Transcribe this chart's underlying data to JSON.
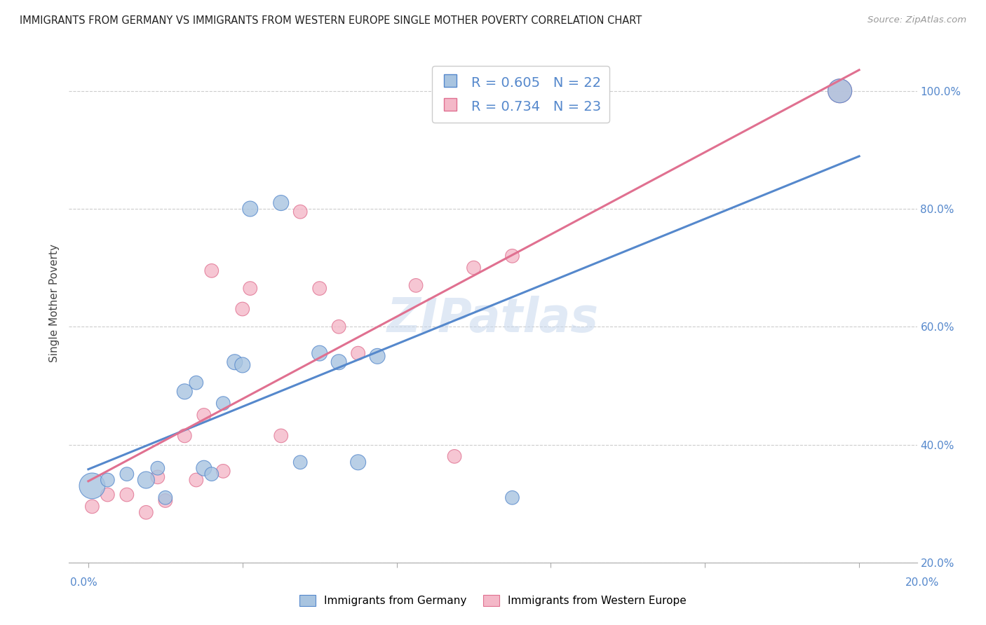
{
  "title": "IMMIGRANTS FROM GERMANY VS IMMIGRANTS FROM WESTERN EUROPE SINGLE MOTHER POVERTY CORRELATION CHART",
  "source": "Source: ZipAtlas.com",
  "legend_label1": "Immigrants from Germany",
  "legend_label2": "Immigrants from Western Europe",
  "R1": 0.605,
  "N1": 22,
  "R2": 0.734,
  "N2": 23,
  "color_germany": "#a8c4e0",
  "color_western": "#f4b8c8",
  "line_color_germany": "#5588cc",
  "line_color_western": "#e07090",
  "germany_x": [
    0.001,
    0.005,
    0.01,
    0.015,
    0.018,
    0.02,
    0.025,
    0.028,
    0.03,
    0.032,
    0.035,
    0.038,
    0.04,
    0.042,
    0.05,
    0.055,
    0.06,
    0.065,
    0.07,
    0.075,
    0.11,
    0.195
  ],
  "germany_y": [
    0.33,
    0.34,
    0.35,
    0.34,
    0.36,
    0.31,
    0.49,
    0.505,
    0.36,
    0.35,
    0.47,
    0.54,
    0.535,
    0.8,
    0.81,
    0.37,
    0.555,
    0.54,
    0.37,
    0.55,
    0.31,
    1.0
  ],
  "germany_size": [
    700,
    200,
    200,
    300,
    200,
    200,
    250,
    200,
    250,
    200,
    200,
    250,
    250,
    250,
    250,
    200,
    250,
    250,
    250,
    250,
    200,
    600
  ],
  "western_x": [
    0.001,
    0.005,
    0.01,
    0.015,
    0.018,
    0.02,
    0.025,
    0.028,
    0.03,
    0.032,
    0.035,
    0.04,
    0.042,
    0.05,
    0.055,
    0.06,
    0.065,
    0.07,
    0.085,
    0.095,
    0.1,
    0.11,
    0.195
  ],
  "western_y": [
    0.295,
    0.315,
    0.315,
    0.285,
    0.345,
    0.305,
    0.415,
    0.34,
    0.45,
    0.695,
    0.355,
    0.63,
    0.665,
    0.415,
    0.795,
    0.665,
    0.6,
    0.555,
    0.67,
    0.38,
    0.7,
    0.72,
    1.0
  ],
  "western_size": [
    200,
    200,
    200,
    200,
    200,
    200,
    200,
    200,
    200,
    200,
    200,
    200,
    200,
    200,
    200,
    200,
    200,
    200,
    200,
    200,
    200,
    200,
    600
  ],
  "xlim": [
    -0.005,
    0.215
  ],
  "ylim": [
    0.2,
    1.08
  ],
  "xticks": [
    0.0,
    0.04,
    0.08,
    0.12,
    0.16,
    0.2
  ],
  "yticks": [
    0.2,
    0.4,
    0.6,
    0.8,
    1.0
  ],
  "ytick_labels": [
    "20.0%",
    "40.0%",
    "60.0%",
    "80.0%",
    "100.0%"
  ],
  "background_color": "#ffffff",
  "grid_color": "#cccccc",
  "watermark": "ZIPatlas",
  "ylabel": "Single Mother Poverty"
}
